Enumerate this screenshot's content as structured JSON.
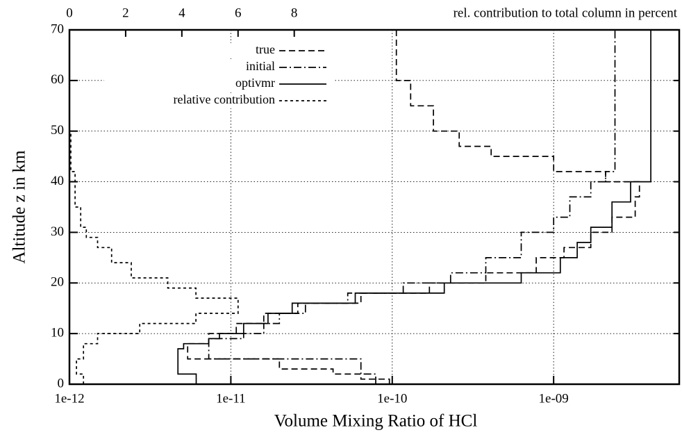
{
  "chart_data": {
    "type": "line",
    "xlabel": "Volume Mixing Ratio of HCl",
    "ylabel": "Altitude z in km",
    "x2label": "rel. contribution to total column in percent",
    "xscale": "log",
    "xlim": [
      1e-12,
      6e-09
    ],
    "xticks": [
      {
        "value": 1e-12,
        "label": "1e-12"
      },
      {
        "value": 1e-11,
        "label": "1e-11"
      },
      {
        "value": 1e-10,
        "label": "1e-10"
      },
      {
        "value": 1e-09,
        "label": "1e-09"
      }
    ],
    "x2lim": [
      0,
      21.7
    ],
    "x2ticks": [
      0,
      2,
      4,
      6,
      8
    ],
    "ylim": [
      0,
      70
    ],
    "yticks": [
      0,
      10,
      20,
      30,
      40,
      50,
      60,
      70
    ],
    "grid": true,
    "legend": "upper center",
    "series": [
      {
        "name": "true",
        "color": "#000000",
        "linestyle": "dashed",
        "x": [
          9.6e-11,
          9.6e-11,
          6.4e-11,
          6.4e-11,
          4.3e-11,
          4.3e-11,
          2e-11,
          2e-11,
          5.4e-12,
          5.4e-12,
          7.3e-12,
          7.3e-12,
          1.08e-11,
          1.08e-11,
          1.6e-11,
          1.6e-11,
          2.6e-11,
          2.6e-11,
          6.4e-11,
          6.4e-11,
          1.7e-10,
          1.7e-10,
          3.8e-10,
          3.8e-10,
          7.8e-10,
          7.8e-10,
          1.16e-09,
          1.16e-09,
          1.7e-09,
          1.7e-09,
          2.3e-09,
          2.3e-09,
          3.2e-09,
          3.2e-09,
          3.4e-09,
          3.4e-09,
          2.1e-09,
          2.1e-09,
          1e-09,
          1e-09,
          4.1e-10,
          4.1e-10,
          2.6e-10,
          2.6e-10,
          1.8e-10,
          1.8e-10,
          1.3e-10,
          1.3e-10,
          1.06e-10,
          1.06e-10
        ],
        "y": [
          0,
          1,
          1,
          2,
          2,
          3,
          3,
          5,
          5,
          8,
          8,
          10,
          10,
          12,
          12,
          14,
          14,
          16,
          16,
          18,
          18,
          20,
          20,
          22,
          22,
          25,
          25,
          27,
          27,
          30,
          30,
          33,
          33,
          37,
          37,
          40,
          40,
          42,
          42,
          45,
          45,
          47,
          47,
          50,
          50,
          55,
          55,
          60,
          60,
          70
        ]
      },
      {
        "name": "initial",
        "color": "#000000",
        "linestyle": "dashdot",
        "x": [
          7.9e-11,
          7.9e-11,
          6.4e-11,
          6.4e-11,
          7.3e-12,
          7.3e-12,
          1.2e-11,
          1.2e-11,
          1.6e-11,
          1.6e-11,
          2e-11,
          2e-11,
          2.9e-11,
          2.9e-11,
          5.3e-11,
          5.3e-11,
          1.17e-10,
          1.17e-10,
          2.3e-10,
          2.3e-10,
          3.8e-10,
          3.8e-10,
          6.3e-10,
          6.3e-10,
          1e-09,
          1e-09,
          1.26e-09,
          1.26e-09,
          1.7e-09,
          1.7e-09,
          2.1e-09,
          2.1e-09,
          2.4e-09,
          2.4e-09
        ],
        "y": [
          0,
          2,
          2,
          5,
          5,
          9,
          9,
          10,
          10,
          12,
          12,
          14,
          14,
          16,
          16,
          18,
          18,
          20,
          20,
          22,
          22,
          25,
          25,
          30,
          30,
          33,
          33,
          37,
          37,
          40,
          40,
          42,
          42,
          70
        ]
      },
      {
        "name": "optivmr",
        "color": "#000000",
        "linestyle": "solid",
        "x": [
          6.1e-12,
          6.1e-12,
          4.7e-12,
          4.7e-12,
          5.1e-12,
          5.1e-12,
          7.3e-12,
          7.3e-12,
          8.5e-12,
          8.5e-12,
          1.2e-11,
          1.2e-11,
          1.7e-11,
          1.7e-11,
          2.4e-11,
          2.4e-11,
          5.9e-11,
          5.9e-11,
          2.1e-10,
          2.1e-10,
          6.3e-10,
          6.3e-10,
          1.1e-09,
          1.1e-09,
          1.4e-09,
          1.4e-09,
          1.7e-09,
          1.7e-09,
          2.3e-09,
          2.3e-09,
          3e-09,
          3e-09,
          4e-09,
          4e-09
        ],
        "y": [
          0,
          2,
          2,
          7,
          7,
          8,
          8,
          9,
          9,
          10,
          10,
          12,
          12,
          14,
          14,
          16,
          16,
          18,
          18,
          20,
          20,
          22,
          22,
          25,
          25,
          28,
          28,
          31,
          31,
          36,
          36,
          40,
          40,
          70
        ]
      },
      {
        "name": "relative contribution",
        "color": "#000000",
        "linestyle": "dotted",
        "axis": "x2",
        "x": [
          0.5,
          0.5,
          0.25,
          0.25,
          0.5,
          0.5,
          1,
          1,
          2.5,
          2.5,
          4.5,
          4.5,
          6,
          6,
          4.5,
          4.5,
          3.5,
          3.5,
          2.2,
          2.2,
          1.5,
          1.5,
          1,
          1,
          0.6,
          0.6,
          0.4,
          0.4,
          0.2,
          0.2,
          0.05,
          0.05,
          0,
          0
        ],
        "y": [
          0,
          2,
          2,
          5,
          5,
          8,
          8,
          10,
          10,
          12,
          12,
          14,
          14,
          17,
          17,
          19,
          19,
          21,
          21,
          24,
          24,
          27,
          27,
          29,
          29,
          31,
          31,
          35,
          35,
          42,
          42,
          50,
          50,
          70
        ]
      }
    ]
  }
}
